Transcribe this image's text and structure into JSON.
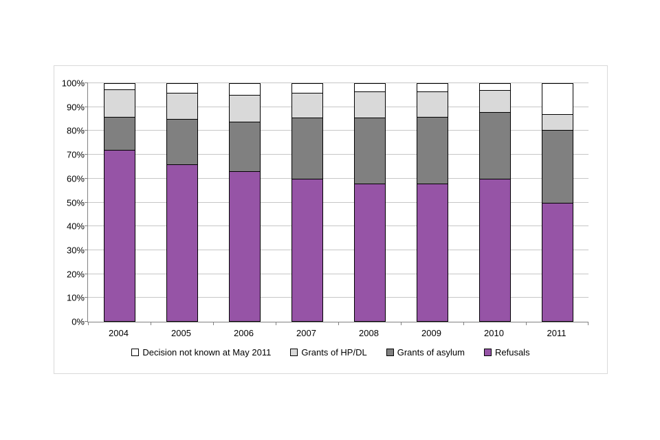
{
  "chart_data": {
    "type": "bar",
    "stacked": true,
    "percent": true,
    "title": "",
    "categories": [
      "2004",
      "2005",
      "2006",
      "2007",
      "2008",
      "2009",
      "2010",
      "2011"
    ],
    "series": [
      {
        "name": "Refusals",
        "color": "#9654A6",
        "values": [
          72,
          66,
          63,
          60,
          58,
          58,
          60,
          50
        ]
      },
      {
        "name": "Grants of asylum",
        "color": "#808080",
        "values": [
          14,
          19,
          21,
          25.5,
          27.5,
          28,
          28,
          30.5
        ]
      },
      {
        "name": "Grants of HP/DL",
        "color": "#D9D9D9",
        "values": [
          11.5,
          11,
          11,
          10.5,
          11,
          10.5,
          9,
          6.5
        ]
      },
      {
        "name": "Decision not known at May 2011",
        "color": "#FFFFFF",
        "values": [
          2.5,
          4,
          5,
          4,
          3.5,
          3.5,
          3,
          13
        ]
      }
    ],
    "y_axis": {
      "min": 0,
      "max": 100,
      "step": 10,
      "tick_labels": [
        "0%",
        "10%",
        "20%",
        "30%",
        "40%",
        "50%",
        "60%",
        "70%",
        "80%",
        "90%",
        "100%"
      ]
    },
    "x_axis": {
      "label": ""
    },
    "grid": true,
    "gridline_color": "#C6C6C6",
    "legend": {
      "position": "bottom",
      "order": [
        "Decision not known at May 2011",
        "Grants of HP/DL",
        "Grants of asylum",
        "Refusals"
      ]
    }
  }
}
